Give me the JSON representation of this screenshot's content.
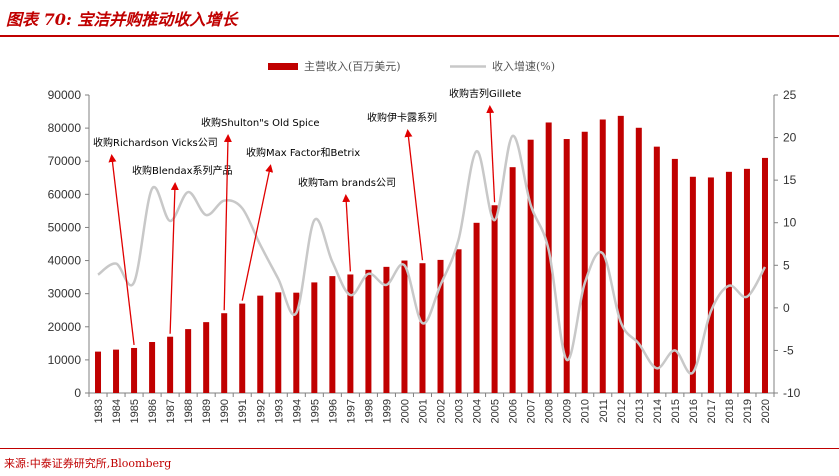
{
  "header": {
    "title": "图表 70:  宝洁并购推动收入增长"
  },
  "footer": {
    "source": "来源:中泰证券研究所,Bloomberg"
  },
  "chart_data": {
    "type": "bar+line",
    "categories": [
      "1983",
      "1984",
      "1985",
      "1986",
      "1987",
      "1988",
      "1989",
      "1990",
      "1991",
      "1992",
      "1993",
      "1994",
      "1995",
      "1996",
      "1997",
      "1998",
      "1999",
      "2000",
      "2001",
      "2002",
      "2003",
      "2004",
      "2005",
      "2006",
      "2007",
      "2008",
      "2009",
      "2010",
      "2011",
      "2012",
      "2013",
      "2014",
      "2015",
      "2016",
      "2017",
      "2018",
      "2019",
      "2020"
    ],
    "series": [
      {
        "name": "主营收入(百万美元)",
        "type": "bar",
        "axis": "left",
        "color": "#c00000",
        "values": [
          12500,
          13100,
          13600,
          15400,
          17000,
          19300,
          21400,
          24100,
          27000,
          29400,
          30400,
          30300,
          33400,
          35300,
          35800,
          37200,
          38100,
          40000,
          39200,
          40200,
          43400,
          51400,
          56700,
          68200,
          76500,
          81700,
          76700,
          78900,
          82600,
          83700,
          80100,
          74400,
          70700,
          65300,
          65100,
          66800,
          67700,
          71000
        ]
      },
      {
        "name": "收入增速(%)",
        "type": "line",
        "axis": "right",
        "color": "#c8c8c8",
        "values": [
          3.9,
          5.2,
          3.0,
          14.0,
          10.2,
          13.6,
          10.9,
          12.6,
          11.7,
          7.4,
          3.4,
          -0.6,
          10.3,
          5.4,
          1.5,
          4.0,
          2.7,
          5.0,
          -1.8,
          2.7,
          8.0,
          18.4,
          10.3,
          20.2,
          12.1,
          6.8,
          -6.1,
          2.9,
          6.4,
          -1.7,
          -4.2,
          -7.1,
          -5.0,
          -7.6,
          -0.4,
          2.6,
          1.3,
          4.8
        ]
      }
    ],
    "y_left": {
      "min": 0,
      "max": 90000,
      "step": 10000
    },
    "y_right": {
      "min": -10,
      "max": 25,
      "step": 5
    },
    "legend": {
      "position": "top-center"
    },
    "annotations": [
      {
        "text": "收购Richardson Vicks公司",
        "year": "1985"
      },
      {
        "text": "收购Blendax系列产品",
        "year": "1987"
      },
      {
        "text": "收购Shulton\"s Old Spice",
        "year": "1990"
      },
      {
        "text": "收购Max Factor和Betrix",
        "year": "1991"
      },
      {
        "text": "收购Tam brands公司",
        "year": "1997"
      },
      {
        "text": "收购伊卡露系列",
        "year": "2001"
      },
      {
        "text": "收购吉列Gillete",
        "year": "2005"
      }
    ]
  }
}
